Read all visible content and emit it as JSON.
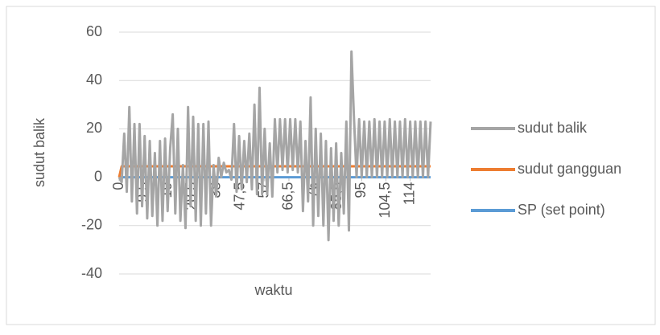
{
  "chart_data": {
    "type": "line",
    "x_label": "waktu",
    "y_label": "sudut balik",
    "xlim": [
      0,
      122
    ],
    "ylim": [
      -40,
      60
    ],
    "yticks": [
      -40,
      -20,
      0,
      20,
      40,
      60
    ],
    "xticks": [
      0,
      {
        "value": 9.5,
        "label": "9,5"
      },
      19,
      {
        "value": 28.5,
        "label": "28,5"
      },
      38,
      {
        "value": 47.5,
        "label": "47,5"
      },
      57,
      {
        "value": 66.5,
        "label": "66,5"
      },
      76,
      {
        "value": 85.5,
        "label": "85,5"
      },
      95,
      {
        "value": 104.5,
        "label": "104,5"
      },
      114
    ],
    "grid": true,
    "legend": "right",
    "series": [
      {
        "name": "sudut balik",
        "color": "#a5a5a5",
        "x": [
          0,
          1,
          2,
          3,
          4,
          5,
          6,
          7,
          8,
          9,
          10,
          11,
          12,
          13,
          14,
          15,
          16,
          17,
          18,
          19,
          20,
          21,
          22,
          23,
          24,
          25,
          26,
          27,
          28,
          29,
          30,
          31,
          32,
          33,
          34,
          35,
          36,
          37,
          38,
          39,
          40,
          41,
          42,
          43,
          44,
          45,
          46,
          47,
          48,
          49,
          50,
          51,
          52,
          53,
          54,
          55,
          56,
          57,
          58,
          59,
          60,
          61,
          62,
          63,
          64,
          65,
          66,
          67,
          68,
          69,
          70,
          71,
          72,
          73,
          74,
          75,
          76,
          77,
          78,
          79,
          80,
          81,
          82,
          83,
          84,
          85,
          86,
          87,
          88,
          89,
          90,
          91,
          92,
          93,
          94,
          95,
          96,
          97,
          98,
          99,
          100,
          101,
          102,
          103,
          104,
          105,
          106,
          107,
          108,
          109,
          110,
          111,
          112,
          113,
          114,
          115,
          116,
          117,
          118,
          119,
          120,
          121,
          122
        ],
        "values": [
          0,
          -2,
          18,
          -6,
          29,
          -10,
          22,
          -15,
          22,
          -12,
          17,
          -17,
          15,
          -16,
          10,
          -20,
          15,
          -18,
          16,
          -14,
          12,
          26,
          -15,
          20,
          -18,
          5,
          -21,
          29,
          -12,
          25,
          -18,
          22,
          -20,
          22,
          -15,
          23,
          -20,
          5,
          -8,
          8,
          0,
          6,
          2,
          3,
          -1,
          22,
          -6,
          17,
          -5,
          15,
          -2,
          18,
          -5,
          30,
          -7,
          37,
          -7,
          20,
          -7,
          14,
          -8,
          24,
          2,
          24,
          3,
          24,
          2,
          24,
          3,
          24,
          2,
          23,
          -14,
          15,
          -10,
          33,
          -20,
          20,
          -16,
          18,
          -20,
          15,
          -26,
          12,
          -18,
          14,
          -20,
          10,
          -15,
          23,
          -22,
          52,
          24,
          0,
          24,
          0,
          23,
          0,
          23,
          0,
          24,
          0,
          23,
          0,
          23,
          0,
          24,
          0,
          23,
          0,
          23,
          0,
          24,
          0,
          23,
          0,
          23,
          0,
          23,
          0,
          23,
          0,
          23
        ]
      },
      {
        "name": "sudut gangguan",
        "color": "#ed7d31",
        "x": [
          0,
          1,
          122
        ],
        "values": [
          0,
          4.5,
          4.5
        ]
      },
      {
        "name": "SP (set point)",
        "color": "#5b9bd5",
        "x": [
          0,
          122
        ],
        "values": [
          0,
          0
        ]
      }
    ]
  }
}
